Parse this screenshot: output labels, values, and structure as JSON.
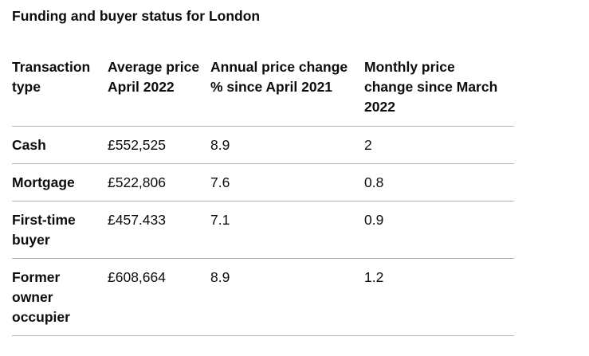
{
  "caption": "Funding and buyer status for London",
  "table": {
    "headers": [
      "Transaction type",
      "Average price April 2022",
      "Annual price change % since April 2021",
      "Monthly price change since March 2022"
    ],
    "rows": [
      [
        "Cash",
        "£552,525",
        "8.9",
        "2"
      ],
      [
        "Mortgage",
        "£522,806",
        "7.6",
        "0.8"
      ],
      [
        "First-time buyer",
        "£457.433",
        "7.1",
        "0.9"
      ],
      [
        "Former owner occupier",
        "£608,664",
        "8.9",
        "1.2"
      ]
    ]
  },
  "colors": {
    "text": "#0b0c0c",
    "divider": "#b1b4b6",
    "background": "#ffffff"
  }
}
